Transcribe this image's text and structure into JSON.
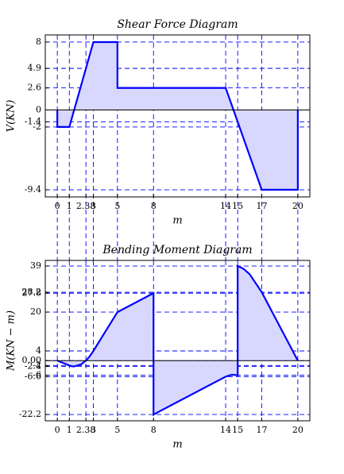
{
  "chart_data": [
    {
      "type": "line",
      "title": "Shear Force Diagram",
      "xlabel": "m",
      "ylabel": "V(KN)",
      "x": [
        0,
        0,
        1,
        3,
        5,
        5,
        14,
        17,
        20,
        20
      ],
      "series": [
        {
          "color": "#0000ff",
          "fill": "#d8d8ff",
          "values": [
            0,
            -2,
            -2,
            8,
            8,
            2.6,
            2.6,
            -9.4,
            -9.4,
            0
          ]
        }
      ],
      "xlim": [
        -1,
        21
      ],
      "xticks": [
        0,
        1,
        2.38,
        3,
        5,
        8,
        14,
        15,
        17,
        20
      ],
      "ylim": [
        -10.24,
        8.84
      ],
      "yticks": [
        8,
        4.9,
        2.6,
        0,
        -1.4,
        -2,
        -9.4
      ],
      "grid": true
    },
    {
      "type": "line",
      "title": "Bending Moment Diagram",
      "xlabel": "m",
      "ylabel": "M(KN − m)",
      "x": [
        0,
        0.5,
        1,
        1.2,
        1.4,
        2,
        2.38,
        2.7,
        3,
        4,
        5,
        8,
        8,
        14,
        14.5,
        15,
        15,
        15.5,
        16,
        17,
        18,
        19,
        20
      ],
      "series": [
        {
          "color": "#0000ff",
          "fill": "#d8d8ff",
          "values": [
            0,
            -1,
            -2,
            -2.3,
            -2.4,
            -1.5,
            0,
            1.8,
            4,
            12,
            20,
            27.8,
            -22.2,
            -6.6,
            -5.8,
            -6,
            39,
            37.8,
            35.6,
            28.2,
            18.8,
            9.4,
            0
          ]
        }
      ],
      "xlim": [
        -1,
        21
      ],
      "xticks": [
        0,
        1,
        2.38,
        3,
        5,
        8,
        14,
        15,
        17,
        20
      ],
      "ylim": [
        -24.8,
        41.3
      ],
      "yticks": [
        39,
        28.2,
        27.8,
        20,
        4,
        {
          "value": 0,
          "label": "0.00"
        },
        -2,
        -2.4,
        -6,
        -6.6,
        -22.2
      ],
      "grid": true
    }
  ]
}
